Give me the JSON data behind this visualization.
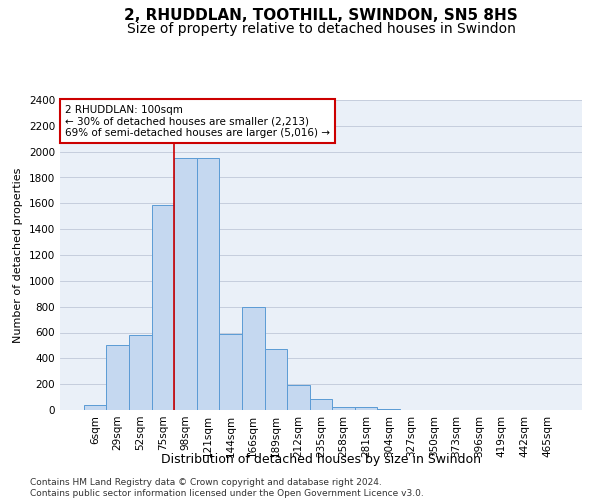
{
  "title": "2, RHUDDLAN, TOOTHILL, SWINDON, SN5 8HS",
  "subtitle": "Size of property relative to detached houses in Swindon",
  "xlabel": "Distribution of detached houses by size in Swindon",
  "ylabel": "Number of detached properties",
  "categories": [
    "6sqm",
    "29sqm",
    "52sqm",
    "75sqm",
    "98sqm",
    "121sqm",
    "144sqm",
    "166sqm",
    "189sqm",
    "212sqm",
    "235sqm",
    "258sqm",
    "281sqm",
    "304sqm",
    "327sqm",
    "350sqm",
    "373sqm",
    "396sqm",
    "419sqm",
    "442sqm",
    "465sqm"
  ],
  "values": [
    40,
    500,
    580,
    1590,
    1950,
    1950,
    590,
    800,
    475,
    195,
    85,
    25,
    20,
    10,
    0,
    0,
    0,
    0,
    0,
    0,
    0
  ],
  "bar_color": "#c5d8f0",
  "bar_edge_color": "#5b9bd5",
  "vline_color": "#cc0000",
  "vline_pos": 3.5,
  "annotation_text": "2 RHUDDLAN: 100sqm\n← 30% of detached houses are smaller (2,213)\n69% of semi-detached houses are larger (5,016) →",
  "annotation_box_color": "#ffffff",
  "annotation_box_edge_color": "#cc0000",
  "ylim": [
    0,
    2400
  ],
  "yticks": [
    0,
    200,
    400,
    600,
    800,
    1000,
    1200,
    1400,
    1600,
    1800,
    2000,
    2200,
    2400
  ],
  "grid_color": "#c0c8d8",
  "background_color": "#eaf0f8",
  "footer_text": "Contains HM Land Registry data © Crown copyright and database right 2024.\nContains public sector information licensed under the Open Government Licence v3.0.",
  "title_fontsize": 11,
  "subtitle_fontsize": 10,
  "xlabel_fontsize": 9,
  "ylabel_fontsize": 8,
  "tick_fontsize": 7.5,
  "annotation_fontsize": 7.5,
  "footer_fontsize": 6.5
}
